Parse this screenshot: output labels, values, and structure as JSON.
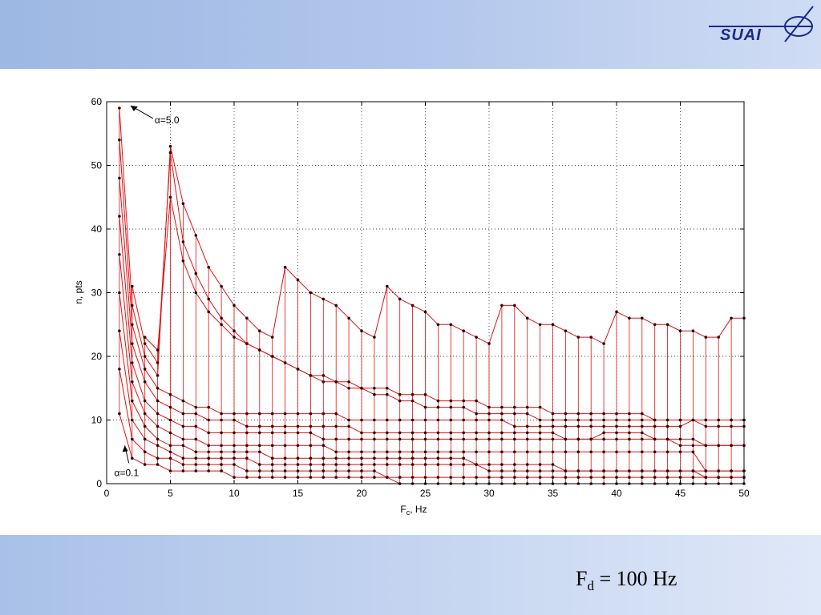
{
  "logo": {
    "text": "SUAI"
  },
  "caption": {
    "main": "F",
    "sub": "d",
    "rest": " = 100 Hz"
  },
  "colors": {
    "series": "#e01010",
    "marker": "#2a0a0a",
    "band_top": "#9db8e3",
    "band_bottom": "#c4d4f0"
  },
  "chart_data": {
    "type": "line",
    "xlabel_main": "F",
    "xlabel_sub": "c",
    "xlabel_rest": ", Hz",
    "ylabel": "n, pts",
    "xlim": [
      0,
      50
    ],
    "ylim": [
      0,
      60
    ],
    "xticks": [
      "0",
      "5",
      "10",
      "15",
      "20",
      "25",
      "30",
      "35",
      "40",
      "45",
      "50"
    ],
    "yticks": [
      "0",
      "10",
      "20",
      "30",
      "40",
      "50",
      "60"
    ],
    "grid": true,
    "annotations": [
      {
        "label": "α=5.0",
        "x": 1.0,
        "y": 59.5
      },
      {
        "label": "α=0.1",
        "x": 1.3,
        "y": 6.5
      }
    ],
    "series": [
      {
        "x": [
          1,
          2,
          3,
          4,
          5,
          6,
          7,
          8,
          9,
          10,
          11,
          12,
          13,
          14,
          15,
          16,
          17,
          18,
          19,
          20,
          21,
          22,
          23,
          24,
          25,
          26,
          27,
          28,
          29,
          30,
          31,
          32,
          33,
          34,
          35,
          36,
          37,
          38,
          39,
          40,
          41,
          42,
          43,
          44,
          45,
          46,
          47,
          48,
          49,
          50
        ],
        "y": [
          11,
          4,
          3,
          3,
          2,
          2,
          2,
          2,
          2,
          1,
          1,
          1,
          1,
          1,
          1,
          1,
          1,
          1,
          1,
          1,
          1,
          1,
          0,
          0,
          0,
          0,
          0,
          0,
          0,
          0,
          0,
          0,
          0,
          0,
          0,
          0,
          0,
          0,
          0,
          0,
          0,
          0,
          0,
          0,
          0,
          0,
          0,
          0,
          0,
          0
        ]
      },
      {
        "x": [
          1,
          2,
          3,
          4,
          5,
          6,
          7,
          8,
          9,
          10,
          11,
          12,
          13,
          14,
          15,
          16,
          17,
          18,
          19,
          20,
          21,
          22,
          23,
          24,
          25,
          26,
          27,
          28,
          29,
          30,
          31,
          32,
          33,
          34,
          35,
          36,
          37,
          38,
          39,
          40,
          41,
          42,
          43,
          44,
          45,
          46,
          47,
          48,
          49,
          50
        ],
        "y": [
          18,
          7,
          5,
          4,
          4,
          3,
          3,
          3,
          3,
          3,
          2,
          2,
          2,
          2,
          2,
          2,
          2,
          2,
          2,
          2,
          2,
          1,
          1,
          1,
          1,
          1,
          1,
          1,
          1,
          1,
          1,
          1,
          1,
          1,
          1,
          1,
          1,
          1,
          1,
          1,
          1,
          1,
          1,
          1,
          1,
          1,
          1,
          1,
          1,
          1
        ]
      },
      {
        "x": [
          1,
          2,
          3,
          4,
          5,
          6,
          7,
          8,
          9,
          10,
          11,
          12,
          13,
          14,
          15,
          16,
          17,
          18,
          19,
          20,
          21,
          22,
          23,
          24,
          25,
          26,
          27,
          28,
          29,
          30,
          31,
          32,
          33,
          34,
          35,
          36,
          37,
          38,
          39,
          40,
          41,
          42,
          43,
          44,
          45,
          46,
          47,
          48,
          49,
          50
        ],
        "y": [
          24,
          10,
          7,
          6,
          5,
          4,
          4,
          4,
          4,
          4,
          4,
          3,
          3,
          3,
          3,
          3,
          3,
          3,
          3,
          3,
          3,
          3,
          3,
          3,
          3,
          3,
          3,
          3,
          3,
          2,
          2,
          2,
          2,
          2,
          2,
          2,
          2,
          2,
          2,
          2,
          2,
          2,
          2,
          2,
          2,
          2,
          2,
          2,
          2,
          2
        ]
      },
      {
        "x": [
          1,
          2,
          3,
          4,
          5,
          6,
          7,
          8,
          9,
          10,
          11,
          12,
          13,
          14,
          15,
          16,
          17,
          18,
          19,
          20,
          21,
          22,
          23,
          24,
          25,
          26,
          27,
          28,
          29,
          30,
          31,
          32,
          33,
          34,
          35,
          36,
          37,
          38,
          39,
          40,
          41,
          42,
          43,
          44,
          45,
          46,
          47,
          48,
          49,
          50
        ],
        "y": [
          30,
          13,
          9,
          7,
          6,
          6,
          5,
          5,
          5,
          5,
          5,
          5,
          4,
          4,
          4,
          4,
          4,
          4,
          4,
          4,
          4,
          4,
          4,
          4,
          4,
          4,
          4,
          4,
          3,
          3,
          3,
          3,
          3,
          3,
          3,
          2,
          2,
          2,
          2,
          2,
          2,
          2,
          2,
          2,
          2,
          2,
          1,
          1,
          1,
          1
        ]
      },
      {
        "x": [
          1,
          2,
          3,
          4,
          5,
          6,
          7,
          8,
          9,
          10,
          11,
          12,
          13,
          14,
          15,
          16,
          17,
          18,
          19,
          20,
          21,
          22,
          23,
          24,
          25,
          26,
          27,
          28,
          29,
          30,
          31,
          32,
          33,
          34,
          35,
          36,
          37,
          38,
          39,
          40,
          41,
          42,
          43,
          44,
          45,
          46,
          47,
          48,
          49,
          50
        ],
        "y": [
          36,
          16,
          11,
          9,
          8,
          7,
          7,
          6,
          6,
          6,
          6,
          6,
          6,
          6,
          6,
          6,
          6,
          5,
          5,
          5,
          5,
          5,
          5,
          5,
          5,
          5,
          5,
          5,
          5,
          5,
          5,
          5,
          5,
          5,
          5,
          5,
          5,
          5,
          5,
          5,
          5,
          5,
          5,
          5,
          5,
          5,
          2,
          2,
          2,
          2
        ]
      },
      {
        "x": [
          1,
          2,
          3,
          4,
          5,
          6,
          7,
          8,
          9,
          10,
          11,
          12,
          13,
          14,
          15,
          16,
          17,
          18,
          19,
          20,
          21,
          22,
          23,
          24,
          25,
          26,
          27,
          28,
          29,
          30,
          31,
          32,
          33,
          34,
          35,
          36,
          37,
          38,
          39,
          40,
          41,
          42,
          43,
          44,
          45,
          46,
          47,
          48,
          49,
          50
        ],
        "y": [
          42,
          19,
          13,
          11,
          10,
          9,
          9,
          8,
          8,
          8,
          8,
          8,
          8,
          8,
          8,
          8,
          7,
          7,
          7,
          7,
          7,
          7,
          7,
          7,
          7,
          7,
          7,
          7,
          7,
          7,
          7,
          7,
          7,
          7,
          7,
          7,
          7,
          7,
          7,
          7,
          7,
          7,
          7,
          7,
          6,
          6,
          6,
          6,
          6,
          6
        ]
      },
      {
        "x": [
          1,
          2,
          3,
          4,
          5,
          6,
          7,
          8,
          9,
          10,
          11,
          12,
          13,
          14,
          15,
          16,
          17,
          18,
          19,
          20,
          21,
          22,
          23,
          24,
          25,
          26,
          27,
          28,
          29,
          30,
          31,
          32,
          33,
          34,
          35,
          36,
          37,
          38,
          39,
          40,
          41,
          42,
          43,
          44,
          45,
          46,
          47,
          48,
          49,
          50
        ],
        "y": [
          48,
          22,
          16,
          13,
          12,
          11,
          11,
          10,
          10,
          10,
          9,
          9,
          9,
          9,
          9,
          9,
          9,
          9,
          9,
          8,
          8,
          8,
          8,
          8,
          8,
          8,
          8,
          8,
          8,
          8,
          8,
          8,
          8,
          8,
          8,
          7,
          7,
          7,
          8,
          8,
          8,
          8,
          7,
          7,
          7,
          7,
          6,
          6,
          6,
          6
        ]
      },
      {
        "x": [
          1,
          2,
          3,
          4,
          5,
          6,
          7,
          8,
          9,
          10,
          11,
          12,
          13,
          14,
          15,
          16,
          17,
          18,
          19,
          20,
          21,
          22,
          23,
          24,
          25,
          26,
          27,
          28,
          29,
          30,
          31,
          32,
          33,
          34,
          35,
          36,
          37,
          38,
          39,
          40,
          41,
          42,
          43,
          44,
          45,
          46,
          47,
          48,
          49,
          50
        ],
        "y": [
          54,
          25,
          18,
          15,
          14,
          13,
          12,
          12,
          11,
          11,
          11,
          11,
          11,
          11,
          11,
          11,
          11,
          11,
          10,
          10,
          10,
          10,
          10,
          10,
          10,
          10,
          10,
          10,
          10,
          10,
          10,
          9,
          9,
          9,
          9,
          9,
          9,
          9,
          9,
          9,
          9,
          9,
          9,
          9,
          9,
          10,
          10,
          10,
          10,
          10
        ]
      },
      {
        "x": [
          1,
          2,
          3,
          4,
          5,
          6,
          7,
          8,
          9,
          10,
          11,
          12,
          13,
          14,
          15,
          16,
          17,
          18,
          19,
          20,
          21,
          22,
          23,
          24,
          25,
          26,
          27,
          28,
          29,
          30,
          31,
          32,
          33,
          34,
          35,
          36,
          37,
          38,
          39,
          40,
          41,
          42,
          43,
          44,
          45,
          46,
          47,
          48,
          49,
          50
        ],
        "y": [
          59,
          28,
          20,
          17,
          53,
          44,
          39,
          34,
          31,
          28,
          26,
          24,
          23,
          34,
          32,
          30,
          29,
          28,
          26,
          24,
          23,
          31,
          29,
          28,
          27,
          25,
          25,
          24,
          23,
          22,
          28,
          28,
          26,
          25,
          25,
          24,
          23,
          23,
          22,
          27,
          26,
          26,
          25,
          25,
          24,
          24,
          23,
          23,
          26,
          26
        ]
      },
      {
        "x": [
          2,
          3,
          4,
          5,
          6,
          7,
          8,
          9,
          10,
          11,
          12,
          13,
          14,
          15,
          16,
          17,
          18,
          19,
          20,
          21,
          22,
          23,
          24,
          25,
          26,
          27,
          28,
          29,
          30,
          31,
          32,
          33,
          34,
          35,
          36,
          37,
          38,
          39,
          40,
          41,
          42,
          43,
          44,
          45,
          46,
          47,
          48,
          49,
          50
        ],
        "y": [
          31,
          22,
          19,
          52,
          38,
          33,
          29,
          26,
          24,
          22,
          21,
          20,
          19,
          18,
          17,
          16,
          16,
          15,
          15,
          14,
          14,
          13,
          13,
          12,
          12,
          12,
          12,
          11,
          11,
          11,
          11,
          11,
          10,
          10,
          10,
          10,
          10,
          10,
          10,
          10,
          10,
          10,
          10,
          10,
          10,
          9,
          9,
          9,
          9
        ]
      },
      {
        "x": [
          3,
          4,
          5,
          6,
          7,
          8,
          9,
          10,
          11,
          12,
          13,
          14,
          15,
          16,
          17,
          18,
          19,
          20,
          21,
          22,
          23,
          24,
          25,
          26,
          27,
          28,
          29,
          30,
          31,
          32,
          33,
          34,
          35,
          36,
          37,
          38,
          39,
          40,
          41,
          42,
          43,
          44,
          45,
          46,
          47,
          48,
          49,
          50
        ],
        "y": [
          23,
          21,
          45,
          35,
          30,
          27,
          25,
          23,
          22,
          21,
          20,
          19,
          18,
          17,
          17,
          16,
          16,
          15,
          15,
          15,
          14,
          14,
          14,
          13,
          13,
          13,
          13,
          12,
          12,
          12,
          12,
          12,
          11,
          11,
          11,
          11,
          11,
          11,
          11,
          11,
          10,
          10,
          10,
          10,
          10,
          10,
          10,
          10
        ]
      }
    ]
  }
}
